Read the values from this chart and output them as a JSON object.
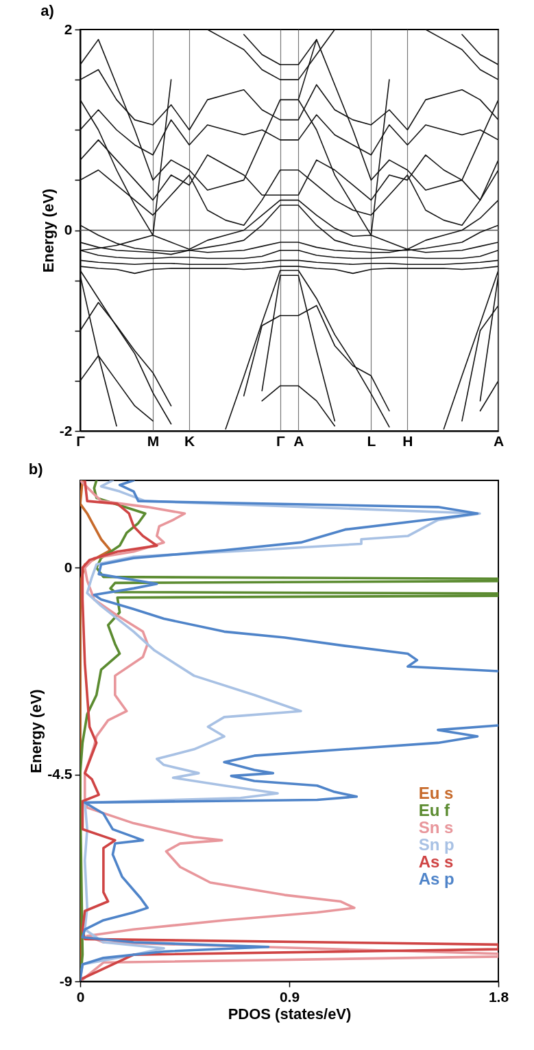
{
  "chart_data": [
    {
      "type": "line",
      "title": "a)",
      "ylabel": "Energy (eV)",
      "categories": [
        "Γ",
        null,
        null,
        null,
        "M",
        null,
        "K",
        null,
        null,
        null,
        null,
        "Γ",
        "A",
        null,
        null,
        null,
        "L",
        null,
        "H",
        null,
        null,
        null,
        null,
        "A"
      ],
      "ylim": [
        -2,
        2
      ],
      "yticks": [
        {
          "value": -2,
          "label": "-2"
        },
        {
          "value": -1.5,
          "label": null
        },
        {
          "value": -1,
          "label": null
        },
        {
          "value": -0.5,
          "label": null
        },
        {
          "value": 0,
          "label": "0"
        },
        {
          "value": 0.5,
          "label": null
        },
        {
          "value": 1,
          "label": null
        },
        {
          "value": 1.5,
          "label": null
        },
        {
          "value": 2,
          "label": "2"
        }
      ],
      "grid": "x",
      "ref_lines": [
        {
          "axis": "y",
          "value": 0
        }
      ],
      "series": [
        {
          "color": "#111111",
          "values": [
            -0.4,
            -0.68,
            -0.96,
            -1.23,
            -1.62,
            -1.93,
            null,
            null,
            -1.98,
            -1.46,
            -0.92,
            -0.4,
            -0.4,
            -0.68,
            -1.04,
            -1.32,
            -1.63,
            -1.96,
            null,
            null,
            -1.98,
            -1.45,
            -0.93,
            -0.4
          ]
        },
        {
          "color": "#111111",
          "values": [
            -0.45,
            -1.25,
            -1.95,
            null,
            null,
            null,
            null,
            null,
            null,
            null,
            -1.6,
            -0.45,
            -0.45,
            -1.2,
            -1.9,
            null,
            null,
            null,
            null,
            null,
            null,
            null,
            -1.7,
            -0.45
          ]
        },
        {
          "color": "#111111",
          "values": [
            -1.0,
            -0.72,
            -0.95,
            -1.2,
            -1.42,
            -1.75,
            null,
            null,
            null,
            -1.65,
            -0.95,
            -0.85,
            -0.85,
            -0.75,
            -1.15,
            -1.35,
            -1.45,
            -1.8,
            null,
            null,
            null,
            -1.9,
            -1.0,
            -0.75
          ]
        },
        {
          "color": "#111111",
          "values": [
            -1.5,
            -1.25,
            -1.5,
            -1.75,
            -1.9,
            null,
            null,
            null,
            null,
            null,
            -1.7,
            -1.55,
            -1.55,
            -1.7,
            -1.95,
            null,
            null,
            null,
            null,
            null,
            null,
            null,
            -1.8,
            -1.5
          ]
        },
        {
          "color": "#111111",
          "values": [
            -0.12,
            -0.17,
            -0.2,
            -0.21,
            -0.22,
            -0.24,
            -0.2,
            -0.22,
            -0.21,
            -0.2,
            -0.16,
            -0.12,
            -0.12,
            -0.17,
            -0.2,
            -0.21,
            -0.22,
            -0.22,
            -0.19,
            -0.22,
            -0.21,
            -0.2,
            -0.16,
            -0.12
          ]
        },
        {
          "color": "#111111",
          "values": [
            -0.2,
            -0.25,
            -0.27,
            -0.28,
            -0.28,
            -0.27,
            -0.27,
            -0.28,
            -0.28,
            -0.28,
            -0.26,
            -0.2,
            -0.2,
            -0.25,
            -0.27,
            -0.28,
            -0.28,
            -0.27,
            -0.27,
            -0.28,
            -0.28,
            -0.28,
            -0.26,
            -0.2
          ]
        },
        {
          "color": "#111111",
          "values": [
            -0.3,
            -0.32,
            -0.33,
            -0.34,
            -0.33,
            -0.33,
            -0.34,
            -0.34,
            -0.34,
            -0.33,
            -0.32,
            -0.3,
            -0.3,
            -0.32,
            -0.33,
            -0.34,
            -0.33,
            -0.33,
            -0.34,
            -0.34,
            -0.34,
            -0.33,
            -0.32,
            -0.3
          ]
        },
        {
          "color": "#111111",
          "values": [
            -0.36,
            -0.38,
            -0.39,
            -0.43,
            -0.39,
            -0.38,
            -0.38,
            -0.38,
            -0.38,
            -0.39,
            -0.38,
            -0.36,
            -0.36,
            -0.38,
            -0.39,
            -0.43,
            -0.39,
            -0.38,
            -0.38,
            -0.38,
            -0.38,
            -0.39,
            -0.38,
            -0.36
          ]
        },
        {
          "color": "#111111",
          "values": [
            0.05,
            -0.05,
            -0.13,
            -0.18,
            -0.2,
            -0.21,
            -0.2,
            -0.17,
            -0.14,
            -0.1,
            0.05,
            0.25,
            0.25,
            0.05,
            -0.1,
            -0.15,
            -0.18,
            -0.2,
            -0.2,
            -0.18,
            -0.15,
            -0.12,
            -0.02,
            0.05
          ]
        },
        {
          "color": "#111111",
          "values": [
            -0.2,
            -0.18,
            -0.15,
            -0.1,
            -0.05,
            -0.12,
            -0.19,
            -0.1,
            -0.05,
            0.0,
            0.15,
            0.3,
            0.3,
            0.15,
            0.02,
            -0.06,
            -0.05,
            -0.12,
            -0.19,
            -0.1,
            -0.05,
            0.0,
            0.12,
            0.3
          ]
        },
        {
          "color": "#111111",
          "values": [
            1.3,
            1.0,
            0.6,
            0.25,
            -0.05,
            1.5,
            null,
            null,
            null,
            null,
            null,
            null,
            1.3,
            1.0,
            0.55,
            0.25,
            -0.05,
            1.5,
            null,
            null,
            null,
            null,
            null,
            null
          ]
        },
        {
          "color": "#111111",
          "values": [
            null,
            1.9,
            1.45,
            1.0,
            0.5,
            0.7,
            0.6,
            0.4,
            0.45,
            0.5,
            0.9,
            1.3,
            1.3,
            1.9,
            1.45,
            1.0,
            0.5,
            0.7,
            0.6,
            0.4,
            0.45,
            0.5,
            0.9,
            1.3
          ]
        },
        {
          "color": "#111111",
          "values": [
            1.5,
            1.6,
            1.3,
            1.1,
            1.05,
            1.25,
            1.0,
            1.3,
            1.35,
            1.4,
            1.2,
            1.1,
            1.1,
            1.45,
            1.2,
            1.1,
            1.05,
            1.2,
            1.0,
            1.3,
            1.35,
            1.4,
            1.3,
            1.1
          ]
        },
        {
          "color": "#111111",
          "values": [
            1.0,
            1.2,
            1.0,
            0.85,
            0.75,
            1.1,
            0.85,
            1.05,
            1.0,
            0.95,
            1.0,
            0.9,
            0.9,
            1.15,
            0.95,
            0.85,
            0.75,
            1.05,
            0.85,
            1.05,
            1.0,
            0.95,
            1.0,
            0.9
          ]
        },
        {
          "color": "#111111",
          "values": [
            0.7,
            0.9,
            0.7,
            0.5,
            0.3,
            0.55,
            0.45,
            0.75,
            0.65,
            0.55,
            0.35,
            0.35,
            0.35,
            0.7,
            0.6,
            0.45,
            0.3,
            0.55,
            0.5,
            0.75,
            0.6,
            0.5,
            0.3,
            0.7
          ]
        },
        {
          "color": "#111111",
          "values": [
            0.5,
            0.6,
            0.45,
            0.3,
            0.15,
            0.35,
            0.55,
            0.2,
            0.1,
            0.05,
            0.3,
            0.6,
            0.6,
            0.45,
            0.3,
            0.2,
            0.15,
            0.35,
            0.55,
            0.2,
            0.1,
            0.05,
            0.3,
            0.6
          ]
        },
        {
          "color": "#111111",
          "values": [
            null,
            null,
            null,
            null,
            null,
            null,
            null,
            2.0,
            1.9,
            1.8,
            1.6,
            1.5,
            1.5,
            1.75,
            2.0,
            null,
            null,
            null,
            null,
            2.0,
            1.9,
            1.8,
            1.6,
            1.5
          ]
        },
        {
          "color": "#111111",
          "values": [
            1.65,
            1.9,
            null,
            null,
            null,
            null,
            null,
            null,
            null,
            1.95,
            1.75,
            1.65,
            1.65,
            1.9,
            null,
            null,
            null,
            null,
            null,
            null,
            null,
            1.95,
            1.75,
            1.65
          ]
        }
      ]
    },
    {
      "type": "line",
      "orientation": "horizontal",
      "title": "b)",
      "xlabel": "PDOS (states/eV)",
      "ylabel": "Energy (eV)",
      "xlim": [
        0,
        1.8
      ],
      "xticks": [
        0,
        0.9,
        1.8
      ],
      "ylim": [
        -9,
        1.9
      ],
      "yticks": [
        {
          "value": -9,
          "label": "-9"
        },
        {
          "value": -4.5,
          "label": "-4.5"
        },
        0
      ],
      "legend": "right",
      "series": [
        {
          "name": "Eu s",
          "color": "#c76a2b",
          "x": [
            1.9,
            1.39,
            1.18,
            0.9,
            0.62,
            0.38,
            0.24,
            0.07,
            -0.35,
            -4.47,
            -8.96
          ],
          "values": [
            0.01,
            0,
            0.03,
            0.06,
            0.09,
            0.13,
            0.08,
            0.02,
            0,
            0,
            0
          ]
        },
        {
          "name": "Eu f",
          "color": "#5b8b30",
          "x": [
            1.9,
            1.73,
            1.52,
            1.18,
            0.97,
            0.76,
            0.48,
            0.21,
            0,
            -0.2,
            -0.24,
            -0.29,
            -0.33,
            -0.45,
            -0.53,
            -0.56,
            -0.61,
            -0.65,
            -0.97,
            -1.25,
            -1.66,
            -1.87,
            -2.22,
            -2.77,
            -3.19,
            -3.81,
            -4.47,
            -5.01,
            -8.42,
            -8.96
          ],
          "values": [
            0.07,
            0.06,
            0.07,
            0.28,
            0.25,
            0.2,
            0.17,
            0.09,
            0.07,
            0.1,
            1.8,
            1.8,
            0.15,
            0.13,
            0.15,
            1.8,
            1.8,
            0.16,
            0.17,
            0.12,
            0.15,
            0.17,
            0.09,
            0.07,
            0.03,
            0.01,
            0,
            0,
            0.01,
            0
          ]
        },
        {
          "name": "Sn s",
          "color": "#e8969b",
          "x": [
            1.9,
            1.45,
            1.32,
            1.18,
            1.04,
            0.9,
            0.69,
            0.55,
            0.35,
            0.21,
            0,
            -0.28,
            -0.69,
            -1.04,
            -1.39,
            -1.66,
            -1.94,
            -2.35,
            -2.77,
            -3.12,
            -3.32,
            -3.67,
            -3.88,
            -4.47,
            -5.01,
            -5.22,
            -5.56,
            -5.86,
            -5.93,
            -6.0,
            -6.17,
            -6.51,
            -6.85,
            -7.12,
            -7.26,
            -7.4,
            -7.5,
            -7.67,
            -7.87,
            -8.01,
            -8.15,
            -8.4,
            -8.46,
            -8.59,
            -8.96
          ],
          "values": [
            0,
            0.09,
            0.29,
            0.45,
            0.4,
            0.34,
            0.33,
            0.36,
            0.23,
            0.06,
            0.02,
            0.03,
            0.06,
            0.16,
            0.27,
            0.29,
            0.27,
            0.15,
            0.15,
            0.2,
            0.12,
            0.07,
            0.06,
            0.02,
            0.02,
            0.03,
            0.23,
            0.49,
            0.61,
            0.43,
            0.37,
            0.43,
            0.56,
            0.88,
            1.12,
            1.18,
            1.02,
            0.62,
            0.23,
            0.03,
            0.1,
            1.8,
            1.8,
            0.1,
            0.01
          ]
        },
        {
          "name": "Sn p",
          "color": "#a8c1e4",
          "x": [
            1.9,
            1.77,
            1.66,
            1.45,
            1.18,
            1.04,
            0.69,
            0.62,
            0.52,
            0.38,
            0.24,
            0.07,
            -0.21,
            -0.55,
            -0.83,
            -1.39,
            -1.8,
            -2.35,
            -2.77,
            -3.12,
            -3.25,
            -3.46,
            -3.67,
            -3.95,
            -4.16,
            -4.29,
            -4.47,
            -4.57,
            -4.74,
            -4.91,
            -5.01,
            -5.11,
            -5.69,
            -6.37,
            -7.4,
            -7.87,
            -8.15,
            -8.28,
            -8.42,
            -8.63,
            -8.96
          ],
          "values": [
            0.14,
            0.09,
            0.17,
            0.28,
            1.72,
            1.54,
            1.41,
            1.21,
            1.21,
            0.75,
            0.23,
            0.07,
            0.05,
            0.03,
            0.09,
            0.23,
            0.32,
            0.49,
            0.75,
            0.95,
            0.62,
            0.55,
            0.62,
            0.49,
            0.33,
            0.36,
            0.51,
            0.4,
            0.62,
            0.85,
            0.69,
            0.02,
            0.03,
            0.02,
            0.03,
            0.02,
            0.1,
            0.36,
            0.23,
            0.01,
            0
          ]
        },
        {
          "name": "As s",
          "color": "#cf4444",
          "x": [
            1.9,
            1.45,
            1.39,
            1.18,
            0.9,
            0.69,
            0.48,
            0.35,
            0.17,
            0,
            -0.69,
            -2.08,
            -3.46,
            -3.81,
            -4.47,
            -4.6,
            -4.94,
            -5.08,
            -5.69,
            -5.93,
            -6.1,
            -7.06,
            -7.26,
            -7.47,
            -7.87,
            -8.08,
            -8.2,
            -8.3,
            -8.42,
            -8.96
          ],
          "values": [
            0.02,
            0.03,
            0.16,
            0.21,
            0.23,
            0.27,
            0.33,
            0.16,
            0.04,
            0.01,
            0.01,
            0.02,
            0.04,
            0.07,
            0.02,
            0.05,
            0.08,
            0.01,
            0.01,
            0.15,
            0.1,
            0.1,
            0.12,
            0.02,
            0.01,
            0.02,
            1.8,
            1.8,
            0.23,
            0
          ]
        },
        {
          "name": "As p",
          "color": "#4f84c9",
          "x": [
            1.9,
            1.8,
            1.66,
            1.45,
            1.32,
            1.18,
            1.07,
            0.83,
            0.55,
            0.38,
            0.21,
            0.07,
            -0.14,
            -0.35,
            -0.45,
            -0.59,
            -0.69,
            -0.9,
            -1.11,
            -1.39,
            -1.52,
            -1.7,
            -1.87,
            -2.01,
            -2.15,
            -2.25,
            -2.8,
            -3.43,
            -3.53,
            -3.67,
            -3.81,
            -3.95,
            -4.09,
            -4.23,
            -4.4,
            -4.47,
            -4.53,
            -4.64,
            -4.74,
            -4.87,
            -4.98,
            -5.05,
            -5.11,
            -5.35,
            -5.69,
            -5.93,
            -6.0,
            -6.24,
            -6.72,
            -7.19,
            -7.4,
            -7.5,
            -7.67,
            -7.87,
            -8.04,
            -8.15,
            -8.25,
            -8.35,
            -8.49,
            -8.63,
            -8.96
          ],
          "values": [
            0.23,
            0.17,
            0.23,
            0.25,
            1.54,
            1.71,
            1.54,
            1.14,
            0.95,
            0.62,
            0.23,
            0.09,
            0.08,
            0.33,
            0.23,
            0.06,
            0.09,
            0.23,
            0.36,
            0.62,
            0.88,
            1.14,
            1.41,
            1.45,
            1.41,
            1.8,
            null,
            1.8,
            1.54,
            1.71,
            1.54,
            1.14,
            0.75,
            0.62,
            0.75,
            0.83,
            0.65,
            0.75,
            1.02,
            1.09,
            1.19,
            1.02,
            0.02,
            0.1,
            0.14,
            0.27,
            0.15,
            0.14,
            0.18,
            0.26,
            0.29,
            0.23,
            0.1,
            0.02,
            0.01,
            0.23,
            0.81,
            0.36,
            0.1,
            0.01,
            0
          ]
        }
      ]
    }
  ]
}
